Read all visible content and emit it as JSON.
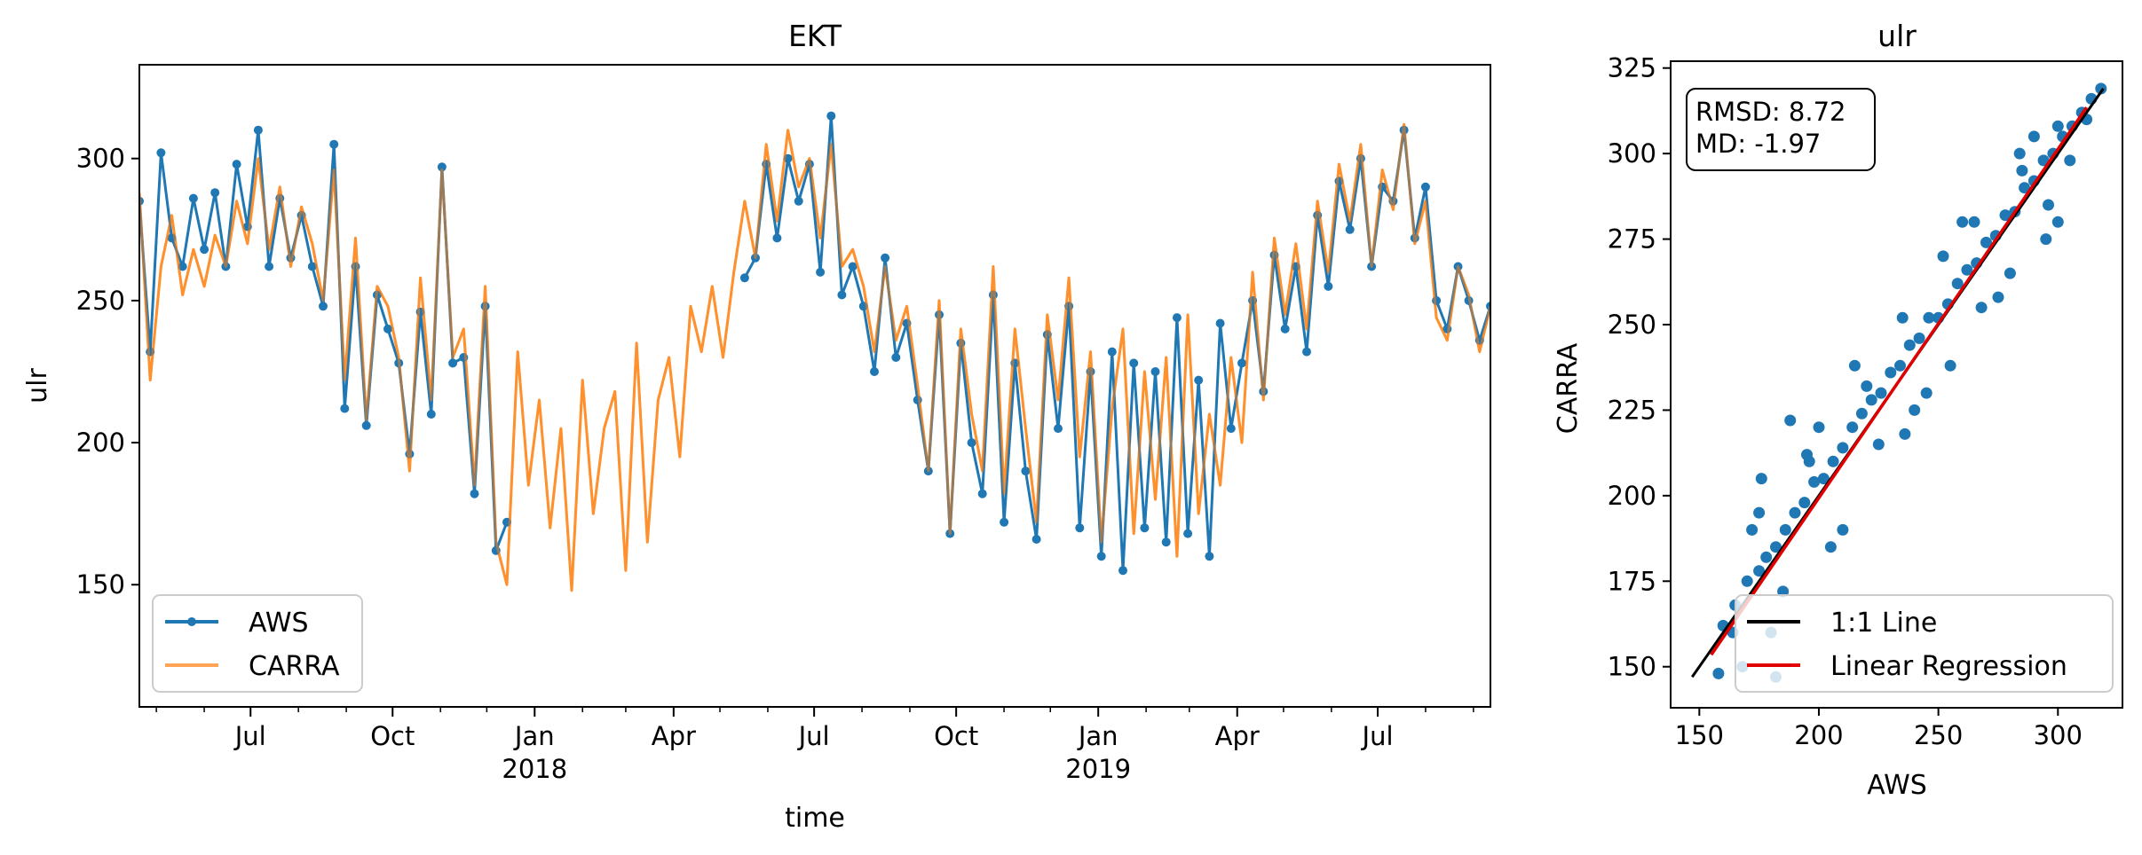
{
  "colors": {
    "aws": "#1f77b4",
    "carra": "#ff7f0e",
    "one_to_one": "#000000",
    "regression": "#e00000"
  },
  "chart_data": [
    {
      "type": "line",
      "title": "EKT",
      "xlabel": "time",
      "ylabel": "ulr",
      "x_range": [
        "2017-04-20",
        "2019-09-12"
      ],
      "ylim": [
        107,
        333
      ],
      "yticks": [
        150,
        200,
        250,
        300
      ],
      "xticks": [
        {
          "date": "2017-07-01",
          "label": "Jul",
          "sub": ""
        },
        {
          "date": "2017-10-01",
          "label": "Oct",
          "sub": ""
        },
        {
          "date": "2018-01-01",
          "label": "Jan",
          "sub": "2018"
        },
        {
          "date": "2018-04-01",
          "label": "Apr",
          "sub": ""
        },
        {
          "date": "2018-07-01",
          "label": "Jul",
          "sub": ""
        },
        {
          "date": "2018-10-01",
          "label": "Oct",
          "sub": ""
        },
        {
          "date": "2019-01-01",
          "label": "Jan",
          "sub": "2019"
        },
        {
          "date": "2019-04-01",
          "label": "Apr",
          "sub": ""
        },
        {
          "date": "2019-07-01",
          "label": "Jul",
          "sub": ""
        }
      ],
      "legend": {
        "position": "lower-left",
        "entries": [
          "AWS",
          "CARRA"
        ]
      },
      "grid": false,
      "series": [
        {
          "name": "CARRA",
          "sampling": "weekly",
          "x": [
            "2017-04-20",
            "2017-04-27",
            "2017-05-04",
            "2017-05-11",
            "2017-05-18",
            "2017-05-25",
            "2017-06-01",
            "2017-06-08",
            "2017-06-15",
            "2017-06-22",
            "2017-06-29",
            "2017-07-06",
            "2017-07-13",
            "2017-07-20",
            "2017-07-27",
            "2017-08-03",
            "2017-08-10",
            "2017-08-17",
            "2017-08-24",
            "2017-08-31",
            "2017-09-07",
            "2017-09-14",
            "2017-09-21",
            "2017-09-28",
            "2017-10-05",
            "2017-10-12",
            "2017-10-19",
            "2017-10-26",
            "2017-11-02",
            "2017-11-09",
            "2017-11-16",
            "2017-11-23",
            "2017-11-30",
            "2017-12-07",
            "2017-12-14",
            "2017-12-21",
            "2017-12-28",
            "2018-01-04",
            "2018-01-11",
            "2018-01-18",
            "2018-01-25",
            "2018-02-01",
            "2018-02-08",
            "2018-02-15",
            "2018-02-22",
            "2018-03-01",
            "2018-03-08",
            "2018-03-15",
            "2018-03-22",
            "2018-03-29",
            "2018-04-05",
            "2018-04-12",
            "2018-04-19",
            "2018-04-26",
            "2018-05-03",
            "2018-05-10",
            "2018-05-17",
            "2018-05-24",
            "2018-05-31",
            "2018-06-07",
            "2018-06-14",
            "2018-06-21",
            "2018-06-28",
            "2018-07-05",
            "2018-07-12",
            "2018-07-19",
            "2018-07-26",
            "2018-08-02",
            "2018-08-09",
            "2018-08-16",
            "2018-08-23",
            "2018-08-30",
            "2018-09-06",
            "2018-09-13",
            "2018-09-20",
            "2018-09-27",
            "2018-10-04",
            "2018-10-11",
            "2018-10-18",
            "2018-10-25",
            "2018-11-01",
            "2018-11-08",
            "2018-11-15",
            "2018-11-22",
            "2018-11-29",
            "2018-12-06",
            "2018-12-13",
            "2018-12-20",
            "2018-12-27",
            "2019-01-03",
            "2019-01-10",
            "2019-01-17",
            "2019-01-24",
            "2019-01-31",
            "2019-02-07",
            "2019-02-14",
            "2019-02-21",
            "2019-02-28",
            "2019-03-07",
            "2019-03-14",
            "2019-03-21",
            "2019-03-28",
            "2019-04-04",
            "2019-04-11",
            "2019-04-18",
            "2019-04-25",
            "2019-05-02",
            "2019-05-09",
            "2019-05-16",
            "2019-05-23",
            "2019-05-30",
            "2019-06-06",
            "2019-06-13",
            "2019-06-20",
            "2019-06-27",
            "2019-07-04",
            "2019-07-11",
            "2019-07-18",
            "2019-07-25",
            "2019-08-01",
            "2019-08-08",
            "2019-08-15",
            "2019-08-22",
            "2019-08-29",
            "2019-09-05",
            "2019-09-12"
          ],
          "values": [
            288,
            222,
            262,
            280,
            252,
            268,
            255,
            273,
            262,
            285,
            270,
            300,
            268,
            290,
            262,
            283,
            270,
            250,
            296,
            222,
            272,
            208,
            255,
            248,
            230,
            190,
            258,
            215,
            296,
            230,
            240,
            185,
            255,
            165,
            150,
            232,
            185,
            215,
            170,
            205,
            148,
            222,
            175,
            205,
            218,
            155,
            235,
            165,
            215,
            230,
            195,
            248,
            232,
            255,
            230,
            260,
            285,
            265,
            305,
            278,
            310,
            290,
            300,
            272,
            305,
            262,
            268,
            255,
            232,
            262,
            236,
            248,
            220,
            190,
            250,
            168,
            240,
            210,
            190,
            262,
            182,
            240,
            205,
            172,
            245,
            215,
            258,
            195,
            232,
            165,
            212,
            240,
            168,
            225,
            180,
            230,
            160,
            245,
            175,
            210,
            185,
            230,
            200,
            260,
            215,
            272,
            245,
            270,
            240,
            285,
            260,
            298,
            278,
            305,
            262,
            296,
            282,
            312,
            270,
            285,
            244,
            236,
            262,
            252,
            232,
            248
          ]
        },
        {
          "name": "AWS",
          "sampling": "weekly",
          "x": [
            "2017-04-20",
            "2017-04-27",
            "2017-05-04",
            "2017-05-11",
            "2017-05-18",
            "2017-05-25",
            "2017-06-01",
            "2017-06-08",
            "2017-06-15",
            "2017-06-22",
            "2017-06-29",
            "2017-07-06",
            "2017-07-13",
            "2017-07-20",
            "2017-07-27",
            "2017-08-03",
            "2017-08-10",
            "2017-08-17",
            "2017-08-24",
            "2017-08-31",
            "2017-09-07",
            "2017-09-14",
            "2017-09-21",
            "2017-09-28",
            "2017-10-05",
            "2017-10-12",
            "2017-10-19",
            "2017-10-26",
            "2017-11-02",
            "2017-11-09",
            "2017-11-16",
            "2017-11-23",
            "2017-11-30",
            "2017-12-07",
            "2017-12-14",
            null,
            "2018-05-17",
            "2018-05-24",
            "2018-05-31",
            "2018-06-07",
            "2018-06-14",
            "2018-06-21",
            "2018-06-28",
            "2018-07-05",
            "2018-07-12",
            "2018-07-19",
            "2018-07-26",
            "2018-08-02",
            "2018-08-09",
            "2018-08-16",
            "2018-08-23",
            "2018-08-30",
            "2018-09-06",
            "2018-09-13",
            "2018-09-20",
            "2018-09-27",
            "2018-10-04",
            "2018-10-11",
            "2018-10-18",
            "2018-10-25",
            "2018-11-01",
            "2018-11-08",
            "2018-11-15",
            "2018-11-22",
            "2018-11-29",
            "2018-12-06",
            "2018-12-13",
            "2018-12-20",
            "2018-12-27",
            "2019-01-03",
            "2019-01-10",
            "2019-01-17",
            "2019-01-24",
            "2019-01-31",
            "2019-02-07",
            "2019-02-14",
            "2019-02-21",
            "2019-02-28",
            "2019-03-07",
            "2019-03-14",
            "2019-03-21",
            "2019-03-28",
            "2019-04-04",
            "2019-04-11",
            "2019-04-18",
            "2019-04-25",
            "2019-05-02",
            "2019-05-09",
            "2019-05-16",
            "2019-05-23",
            "2019-05-30",
            "2019-06-06",
            "2019-06-13",
            "2019-06-20",
            "2019-06-27",
            "2019-07-04",
            "2019-07-11",
            "2019-07-18",
            "2019-07-25",
            "2019-08-01",
            "2019-08-08",
            "2019-08-15",
            "2019-08-22",
            "2019-08-29",
            "2019-09-05",
            "2019-09-12"
          ],
          "values": [
            285,
            232,
            302,
            272,
            262,
            286,
            268,
            288,
            262,
            298,
            276,
            310,
            262,
            286,
            265,
            280,
            262,
            248,
            305,
            212,
            262,
            206,
            252,
            240,
            228,
            196,
            246,
            210,
            297,
            228,
            230,
            182,
            248,
            162,
            172,
            null,
            258,
            265,
            298,
            272,
            300,
            285,
            298,
            260,
            315,
            252,
            262,
            248,
            225,
            265,
            230,
            242,
            215,
            190,
            245,
            168,
            235,
            200,
            182,
            252,
            172,
            228,
            190,
            166,
            238,
            205,
            248,
            170,
            225,
            160,
            232,
            155,
            228,
            170,
            225,
            165,
            244,
            168,
            222,
            160,
            242,
            205,
            228,
            250,
            218,
            266,
            240,
            262,
            232,
            280,
            255,
            292,
            275,
            300,
            262,
            290,
            285,
            310,
            272,
            290,
            250,
            240,
            262,
            250,
            236,
            248
          ]
        }
      ]
    },
    {
      "type": "scatter",
      "title": "ulr",
      "xlabel": "AWS",
      "ylabel": "CARRA",
      "xlim": [
        138,
        327
      ],
      "ylim": [
        138,
        327
      ],
      "xticks": [
        150,
        200,
        250,
        300
      ],
      "yticks": [
        150,
        175,
        200,
        225,
        250,
        275,
        300,
        325
      ],
      "stats_box": [
        "RMSD: 8.72",
        "MD: -1.97"
      ],
      "legend": {
        "position": "lower-right",
        "entries": [
          "1:1 Line",
          "Linear Regression"
        ]
      },
      "grid": false,
      "one_to_one": {
        "x": [
          147,
          319
        ],
        "y": [
          147,
          319
        ]
      },
      "regression": {
        "x": [
          155,
          312
        ],
        "y": [
          153.5,
          313.5
        ]
      },
      "points": {
        "x": [
          160,
          165,
          170,
          175,
          178,
          182,
          186,
          190,
          194,
          198,
          202,
          206,
          210,
          214,
          218,
          222,
          226,
          230,
          234,
          238,
          242,
          246,
          250,
          254,
          258,
          262,
          266,
          270,
          274,
          278,
          282,
          286,
          290,
          294,
          298,
          302,
          306,
          310,
          314,
          318,
          175,
          180,
          185,
          195,
          205,
          215,
          225,
          235,
          245,
          255,
          265,
          275,
          285,
          295,
          300,
          305,
          172,
          168,
          200,
          210,
          220,
          240,
          260,
          280,
          290,
          300,
          182,
          196,
          236,
          252,
          268,
          284,
          296,
          312,
          176,
          188,
          158,
          164
        ],
        "y": [
          162,
          168,
          175,
          178,
          182,
          185,
          190,
          195,
          198,
          204,
          205,
          210,
          214,
          220,
          224,
          228,
          230,
          236,
          238,
          244,
          246,
          252,
          252,
          256,
          262,
          266,
          268,
          274,
          276,
          282,
          283,
          290,
          292,
          298,
          300,
          305,
          308,
          312,
          316,
          319,
          195,
          160,
          172,
          212,
          185,
          238,
          215,
          252,
          230,
          238,
          280,
          258,
          295,
          275,
          308,
          298,
          190,
          150,
          220,
          190,
          232,
          225,
          280,
          265,
          305,
          280,
          147,
          210,
          218,
          270,
          255,
          300,
          285,
          310,
          205,
          222,
          148,
          160
        ]
      }
    }
  ]
}
